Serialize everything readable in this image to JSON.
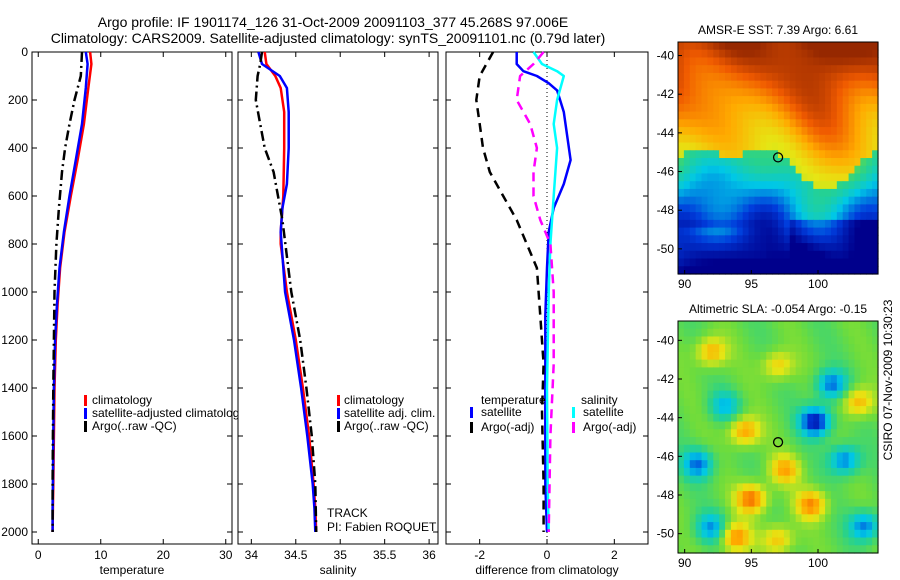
{
  "header": {
    "line1": "Argo profile: IF 1901174_126 31-Oct-2009 20091103_377 45.268S 97.006E",
    "line2": "Climatology: CARS2009. Satellite-adjusted climatology: synTS_20091101.nc (0.79d later)"
  },
  "colors": {
    "climatology": "#ff0000",
    "satellite": "#0000ff",
    "argo": "#000000",
    "salinity_satellite": "#00ffff",
    "salinity_argo": "#ff00ff"
  },
  "footer": {
    "track": "TRACK",
    "pi": "PI: Fabien ROQUET",
    "stamp": "CSIRO 07-Nov-2009 10:30:23"
  },
  "chart_data": [
    {
      "type": "line",
      "xlabel": "temperature",
      "xlim": [
        -1,
        31
      ],
      "ylim": [
        0,
        2050
      ],
      "y_reversed": true,
      "xticks": [
        "0",
        "10",
        "20",
        "30"
      ],
      "yticks": [
        "0",
        "200",
        "400",
        "600",
        "800",
        "1000",
        "1200",
        "1400",
        "1600",
        "1800",
        "2000"
      ],
      "legend": [
        "climatology",
        "satellite-adjusted climatology",
        "Argo(..raw -QC)"
      ],
      "series": [
        {
          "name": "climatology",
          "color": "#ff0000",
          "dash": "solid",
          "x": [
            8.3,
            8.5,
            8.0,
            7.3,
            6.3,
            5.2,
            4.2,
            3.5,
            3.1,
            2.8,
            2.6,
            2.5,
            2.4,
            2.35,
            2.3
          ],
          "y": [
            0,
            50,
            150,
            300,
            450,
            600,
            750,
            900,
            1050,
            1200,
            1400,
            1600,
            1800,
            1900,
            2000
          ]
        },
        {
          "name": "satellite-adjusted climatology",
          "color": "#0000ff",
          "dash": "solid",
          "x": [
            7.6,
            7.9,
            7.6,
            7.0,
            6.0,
            5.0,
            4.1,
            3.4,
            3.0,
            2.7,
            2.5,
            2.4,
            2.35,
            2.3,
            2.3
          ],
          "y": [
            0,
            50,
            150,
            300,
            450,
            600,
            750,
            900,
            1050,
            1200,
            1400,
            1600,
            1800,
            1900,
            2000
          ]
        },
        {
          "name": "Argo(..raw -QC)",
          "color": "#000000",
          "dash": "dashdot",
          "x": [
            7.0,
            6.8,
            5.8,
            5.0,
            4.3,
            3.8,
            3.3,
            2.9,
            2.6,
            2.5,
            2.4,
            2.35,
            2.3,
            2.3
          ],
          "y": [
            0,
            100,
            200,
            300,
            400,
            500,
            650,
            800,
            1000,
            1200,
            1400,
            1600,
            1800,
            2000
          ]
        }
      ]
    },
    {
      "type": "line",
      "xlabel": "salinity",
      "xlim": [
        33.85,
        36.1
      ],
      "ylim": [
        0,
        2050
      ],
      "y_reversed": true,
      "xticks": [
        "34",
        "34.5",
        "35",
        "35.5",
        "36"
      ],
      "legend": [
        "climatology",
        "satellite adj. clim.",
        "Argo(..raw -QC)"
      ],
      "series": [
        {
          "name": "climatology",
          "color": "#ff0000",
          "dash": "solid",
          "x": [
            34.15,
            34.17,
            34.27,
            34.33,
            34.37,
            34.37,
            34.36,
            34.33,
            34.33,
            34.4,
            34.5,
            34.58,
            34.65,
            34.7,
            34.72,
            34.73
          ],
          "y": [
            0,
            50,
            100,
            150,
            250,
            400,
            600,
            750,
            800,
            1000,
            1200,
            1400,
            1600,
            1800,
            1900,
            2000
          ]
        },
        {
          "name": "satellite adj. clim.",
          "color": "#0000ff",
          "dash": "solid",
          "x": [
            34.08,
            34.12,
            34.32,
            34.4,
            34.42,
            34.42,
            34.4,
            34.35,
            34.33,
            34.38,
            34.48,
            34.56,
            34.63,
            34.69,
            34.71,
            34.72
          ],
          "y": [
            0,
            50,
            100,
            150,
            250,
            400,
            550,
            650,
            750,
            1000,
            1200,
            1400,
            1600,
            1800,
            1900,
            2000
          ]
        },
        {
          "name": "Argo(..raw -QC)",
          "color": "#000000",
          "dash": "dashdot",
          "x": [
            34.12,
            34.1,
            34.07,
            34.05,
            34.1,
            34.15,
            34.25,
            34.3,
            34.35,
            34.45,
            34.55,
            34.62,
            34.68,
            34.72,
            34.73
          ],
          "y": [
            0,
            50,
            100,
            200,
            300,
            400,
            500,
            600,
            700,
            1000,
            1200,
            1400,
            1600,
            1800,
            2000
          ]
        }
      ]
    },
    {
      "type": "line",
      "xlabel": "difference from climatology",
      "xlim": [
        -3,
        3
      ],
      "ylim": [
        0,
        2050
      ],
      "y_reversed": true,
      "xticks": [
        "-2",
        "0",
        "2"
      ],
      "zero_line": true,
      "legend_groups": [
        {
          "title": "temperature",
          "items": [
            "satellite",
            "Argo(-adj)"
          ]
        },
        {
          "title": "salinity",
          "items": [
            "satellite",
            "Argo(-adj)"
          ]
        }
      ],
      "series": [
        {
          "name": "temperature satellite",
          "color": "#0000ff",
          "dash": "solid",
          "x": [
            -0.9,
            -0.9,
            -0.7,
            -0.3,
            0.05,
            0.3,
            0.5,
            0.6,
            0.7,
            0.5,
            0.2,
            0.05,
            0.0,
            -0.05,
            -0.05,
            -0.05,
            0.0
          ],
          "y": [
            0,
            50,
            80,
            100,
            130,
            160,
            250,
            350,
            450,
            550,
            650,
            750,
            900,
            1100,
            1400,
            1800,
            2000
          ]
        },
        {
          "name": "temperature Argo(-adj)",
          "color": "#000000",
          "dash": "dashed",
          "x": [
            -1.6,
            -1.8,
            -2.0,
            -2.1,
            -2.0,
            -1.9,
            -1.7,
            -1.3,
            -0.9,
            -0.6,
            -0.3,
            -0.2,
            -0.1,
            -0.15,
            -0.1,
            -0.1
          ],
          "y": [
            0,
            50,
            100,
            200,
            300,
            400,
            500,
            600,
            700,
            800,
            900,
            1100,
            1300,
            1500,
            1800,
            2000
          ]
        },
        {
          "name": "salinity satellite",
          "color": "#00ffff",
          "dash": "solid",
          "x": [
            -0.4,
            -0.15,
            0.3,
            0.5,
            0.3,
            0.2,
            0.3,
            0.2,
            0.1,
            0.05,
            0.0,
            0.02,
            0.05
          ],
          "y": [
            0,
            50,
            80,
            100,
            200,
            300,
            400,
            600,
            800,
            1000,
            1400,
            1800,
            2000
          ]
        },
        {
          "name": "salinity Argo(-adj)",
          "color": "#ff00ff",
          "dash": "dashed",
          "x": [
            -0.1,
            -0.4,
            -0.8,
            -0.9,
            -0.5,
            -0.3,
            -0.4,
            -0.4,
            -0.2,
            0.1,
            0.2,
            0.2,
            0.1,
            0.05
          ],
          "y": [
            0,
            50,
            100,
            200,
            300,
            400,
            500,
            600,
            700,
            800,
            1000,
            1300,
            1600,
            2000
          ]
        }
      ]
    },
    {
      "type": "heatmap",
      "title": "AMSR-E SST: 7.39 Argo: 6.61",
      "xlim": [
        89.5,
        104.5
      ],
      "ylim": [
        -51.3,
        -39.3
      ],
      "xticks": [
        "90",
        "95",
        "100"
      ],
      "yticks": [
        "-40",
        "-42",
        "-44",
        "-46",
        "-48",
        "-50"
      ],
      "marker": {
        "lon": 97.006,
        "lat": -45.268
      }
    },
    {
      "type": "heatmap",
      "title": "Altimetric SLA: -0.054 Argo: -0.15",
      "xlim": [
        89.5,
        104.5
      ],
      "ylim": [
        -51.0,
        -39.0
      ],
      "xticks": [
        "90",
        "95",
        "100"
      ],
      "yticks": [
        "-40",
        "-42",
        "-44",
        "-46",
        "-48",
        "-50"
      ],
      "marker": {
        "lon": 97.006,
        "lat": -45.268
      }
    }
  ]
}
